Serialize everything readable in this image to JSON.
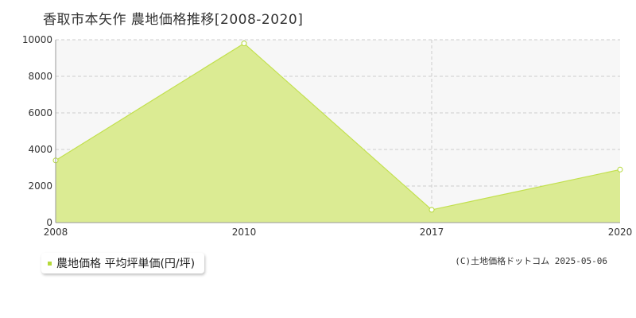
{
  "title": "香取市本矢作 農地価格推移[2008-2020]",
  "legend_label": "農地価格 平均坪単価(円/坪)",
  "credit": "(C)土地価格ドットコム 2025-05-06",
  "colors": {
    "fill": "#dbeb93",
    "line": "#c2e04e",
    "marker": "#b5d93a",
    "plot_bg": "#f7f7f7",
    "grid": "#cccccc"
  },
  "chart_data": {
    "type": "area",
    "title": "香取市本矢作 農地価格推移[2008-2020]",
    "x": [
      2008,
      2010,
      2017,
      2020
    ],
    "series": [
      {
        "name": "農地価格 平均坪単価(円/坪)",
        "values": [
          3400,
          9800,
          700,
          2900
        ]
      }
    ],
    "xticks": [
      "2008",
      "2010",
      "2017",
      "2020"
    ],
    "yticks": [
      "0",
      "2000",
      "4000",
      "6000",
      "8000",
      "10000"
    ],
    "ylim": [
      0,
      10000
    ],
    "grid": true,
    "legend": "bottom-left"
  }
}
